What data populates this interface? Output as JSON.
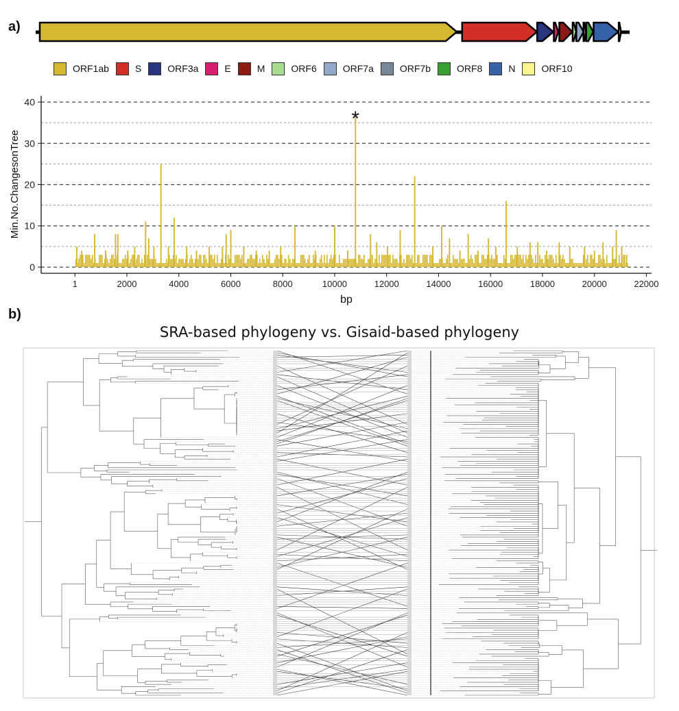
{
  "panel_labels": {
    "a": "a)",
    "b": "b)"
  },
  "genome": {
    "genes": [
      {
        "name": "ORF1ab",
        "start": 1,
        "end": 21290,
        "color": "#D4B830"
      },
      {
        "name": "S",
        "start": 21563,
        "end": 25384,
        "color": "#D03028"
      },
      {
        "name": "ORF3a",
        "start": 25393,
        "end": 26220,
        "color": "#2A3580"
      },
      {
        "name": "E",
        "start": 26245,
        "end": 26472,
        "color": "#D6206E"
      },
      {
        "name": "M",
        "start": 26523,
        "end": 27191,
        "color": "#8C1A14"
      },
      {
        "name": "ORF6",
        "start": 27202,
        "end": 27387,
        "color": "#A8DC90"
      },
      {
        "name": "ORF7a",
        "start": 27394,
        "end": 27759,
        "color": "#94A8C8"
      },
      {
        "name": "ORF7b",
        "start": 27756,
        "end": 27887,
        "color": "#788898"
      },
      {
        "name": "ORF8",
        "start": 27894,
        "end": 28259,
        "color": "#38A030"
      },
      {
        "name": "N",
        "start": 28274,
        "end": 29533,
        "color": "#3862A8"
      },
      {
        "name": "ORF10",
        "start": 29558,
        "end": 29674,
        "color": "#F8F490"
      }
    ]
  },
  "chart_data": {
    "type": "bar",
    "xlabel": "bp",
    "ylabel": "Min.No.ChangesonTree",
    "xlim": [
      -1300,
      22200
    ],
    "ylim": [
      -1.5,
      41.5
    ],
    "x_ticks": [
      1,
      2000,
      4000,
      6000,
      8000,
      10000,
      12000,
      14000,
      16000,
      18000,
      20000,
      22000
    ],
    "x_tick_labels": [
      "1",
      "2000",
      "4000",
      "6000",
      "8000",
      "10000",
      "12000",
      "14000",
      "16000",
      "18000",
      "20000",
      "22000"
    ],
    "y_ticks": [
      0,
      10,
      20,
      30,
      40
    ],
    "y_tick_labels": [
      "0",
      "10",
      "20",
      "30",
      "40"
    ],
    "grid": "horizontal dashed lines every 5",
    "bar_color": "#D4B830",
    "annotation": {
      "text": "*",
      "x": 10800,
      "y": 37
    },
    "peaks": [
      {
        "x": 70,
        "y": 5
      },
      {
        "x": 260,
        "y": 4
      },
      {
        "x": 760,
        "y": 8
      },
      {
        "x": 1180,
        "y": 4
      },
      {
        "x": 1560,
        "y": 8
      },
      {
        "x": 1650,
        "y": 8
      },
      {
        "x": 2030,
        "y": 4
      },
      {
        "x": 2300,
        "y": 5
      },
      {
        "x": 2720,
        "y": 11
      },
      {
        "x": 2840,
        "y": 7
      },
      {
        "x": 3040,
        "y": 5
      },
      {
        "x": 3310,
        "y": 25
      },
      {
        "x": 3600,
        "y": 5
      },
      {
        "x": 3820,
        "y": 12
      },
      {
        "x": 4300,
        "y": 5
      },
      {
        "x": 4680,
        "y": 4
      },
      {
        "x": 5170,
        "y": 5
      },
      {
        "x": 5680,
        "y": 5
      },
      {
        "x": 5820,
        "y": 8
      },
      {
        "x": 6000,
        "y": 9
      },
      {
        "x": 6500,
        "y": 5
      },
      {
        "x": 6980,
        "y": 4
      },
      {
        "x": 7480,
        "y": 4
      },
      {
        "x": 7920,
        "y": 5
      },
      {
        "x": 8470,
        "y": 10
      },
      {
        "x": 9250,
        "y": 4
      },
      {
        "x": 10000,
        "y": 10
      },
      {
        "x": 10500,
        "y": 4
      },
      {
        "x": 10800,
        "y": 37
      },
      {
        "x": 11380,
        "y": 8
      },
      {
        "x": 11620,
        "y": 6
      },
      {
        "x": 12030,
        "y": 5
      },
      {
        "x": 12520,
        "y": 9
      },
      {
        "x": 13080,
        "y": 22
      },
      {
        "x": 13780,
        "y": 5
      },
      {
        "x": 14120,
        "y": 10
      },
      {
        "x": 14420,
        "y": 7
      },
      {
        "x": 14820,
        "y": 4
      },
      {
        "x": 15140,
        "y": 8
      },
      {
        "x": 15520,
        "y": 4
      },
      {
        "x": 15920,
        "y": 7
      },
      {
        "x": 16200,
        "y": 5
      },
      {
        "x": 16600,
        "y": 16
      },
      {
        "x": 17030,
        "y": 5
      },
      {
        "x": 17520,
        "y": 6
      },
      {
        "x": 17820,
        "y": 6
      },
      {
        "x": 18160,
        "y": 4
      },
      {
        "x": 18640,
        "y": 6
      },
      {
        "x": 19050,
        "y": 5
      },
      {
        "x": 19620,
        "y": 5
      },
      {
        "x": 20000,
        "y": 4
      },
      {
        "x": 20330,
        "y": 6
      },
      {
        "x": 20700,
        "y": 5
      },
      {
        "x": 20840,
        "y": 9
      },
      {
        "x": 21050,
        "y": 5
      },
      {
        "x": 21240,
        "y": 3
      }
    ]
  },
  "tanglegram": {
    "title": "SRA-based phylogeny vs. Gisaid-based phylogeny",
    "left_tree": "SRA-based phylogeny",
    "right_tree": "Gisaid-based phylogeny"
  }
}
